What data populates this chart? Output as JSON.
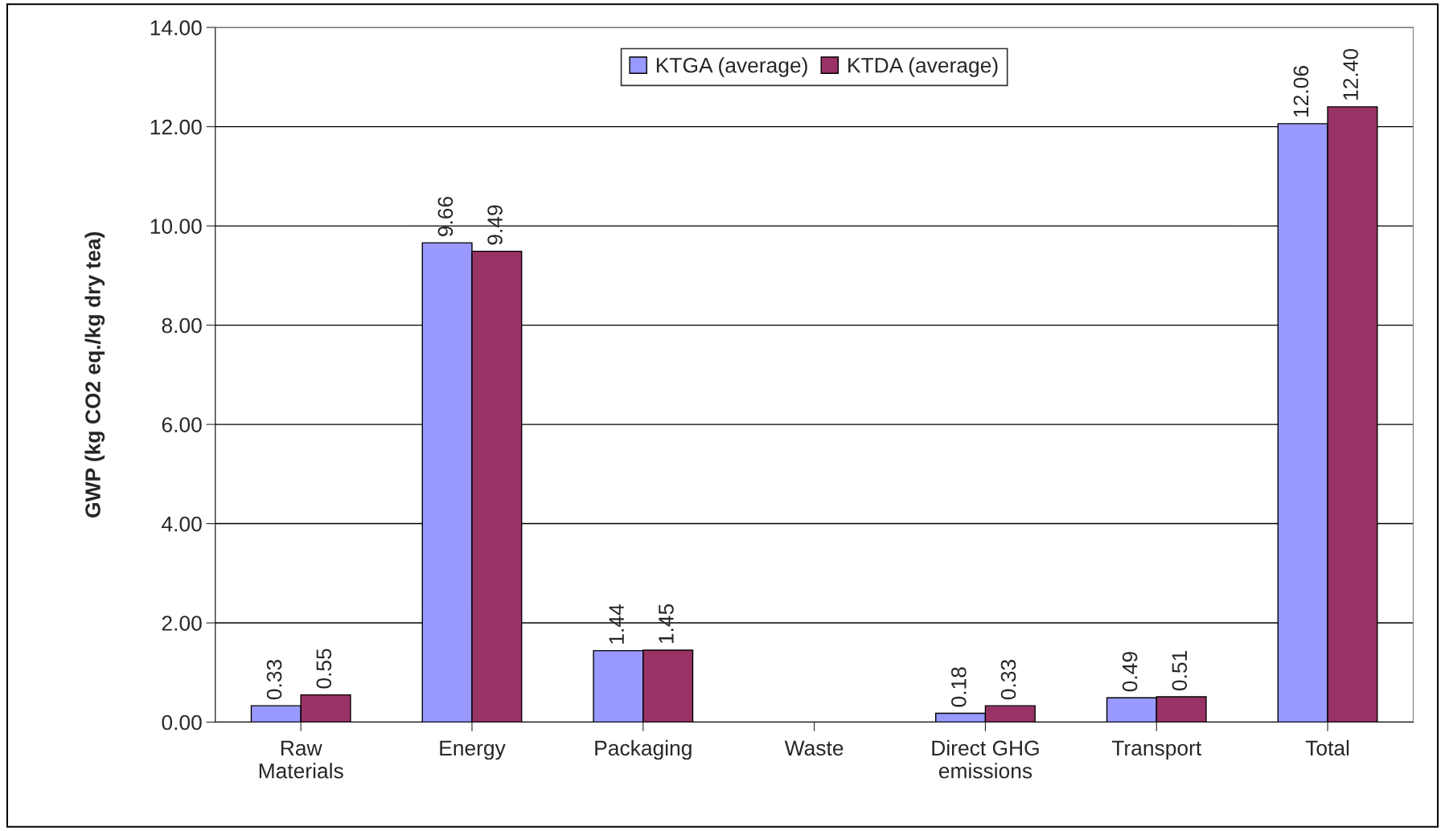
{
  "chart_data": {
    "type": "bar",
    "ylabel": "GWP (kg CO2 eq./kg dry tea)",
    "categories": [
      "Raw\nMaterials",
      "Energy",
      "Packaging",
      "Waste",
      "Direct GHG\nemissions",
      "Transport",
      "Total"
    ],
    "series": [
      {
        "name": "KTGA (average)",
        "color": "#9999ff",
        "values": [
          0.33,
          9.66,
          1.44,
          null,
          0.18,
          0.49,
          12.06
        ],
        "value_labels": [
          "0.33",
          "9.66",
          "1.44",
          null,
          "0.18",
          "0.49",
          "12.06"
        ]
      },
      {
        "name": "KTDA (average)",
        "color": "#993366",
        "values": [
          0.55,
          9.49,
          1.45,
          null,
          0.33,
          0.51,
          12.4
        ],
        "value_labels": [
          "0.55",
          "9.49",
          "1.45",
          null,
          "0.33",
          "0.51",
          "12.40"
        ]
      }
    ],
    "ylim": [
      0,
      14
    ],
    "yticks": [
      {
        "value": 0,
        "label": "0.00"
      },
      {
        "value": 2,
        "label": "2.00"
      },
      {
        "value": 4,
        "label": "4.00"
      },
      {
        "value": 6,
        "label": "6.00"
      },
      {
        "value": 8,
        "label": "8.00"
      },
      {
        "value": 10,
        "label": "10.00"
      },
      {
        "value": 12,
        "label": "12.00"
      },
      {
        "value": 14,
        "label": "14.00"
      }
    ],
    "grid": "y",
    "legend": "top"
  }
}
